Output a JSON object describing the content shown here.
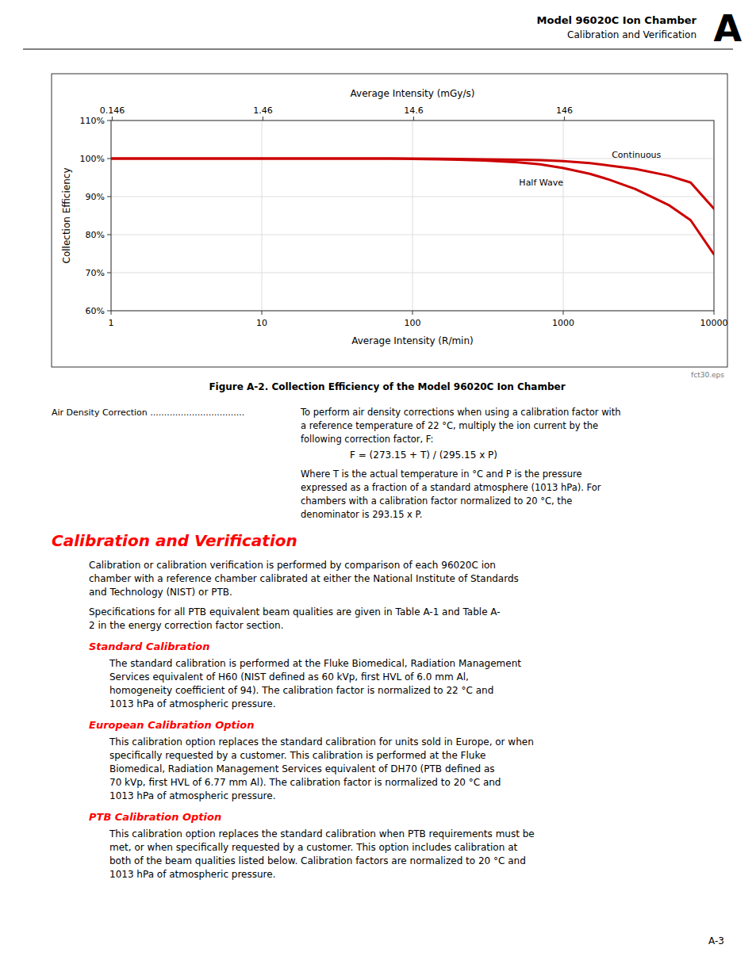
{
  "chart_data": {
    "type": "line",
    "title": "Figure A-2. Collection Efficiency of the Model 96020C Ion Chamber",
    "xlabel": "Average Intensity (R/min)",
    "x2label": "Average Intensity (mGy/s)",
    "ylabel": "Collection Efficiency",
    "log": "x",
    "grid": true,
    "xlim": [
      1,
      10000
    ],
    "xticks": [
      1,
      10,
      100,
      1000,
      10000
    ],
    "x2lim": [
      1,
      10000
    ],
    "x2ticks": [
      {
        "value": 1.017,
        "label": "0.146"
      },
      {
        "value": 10.17,
        "label": "1.46"
      },
      {
        "value": 101.7,
        "label": "14.6"
      },
      {
        "value": 1017,
        "label": "146"
      }
    ],
    "ylim": [
      0.6,
      1.1
    ],
    "yticks": [
      {
        "value": 0.6,
        "label": "60%"
      },
      {
        "value": 0.7,
        "label": "70%"
      },
      {
        "value": 0.8,
        "label": "80%"
      },
      {
        "value": 0.9,
        "label": "90%"
      },
      {
        "value": 1.0,
        "label": "100%"
      },
      {
        "value": 1.1,
        "label": "110%"
      }
    ],
    "x": [
      1,
      2,
      3,
      5,
      7,
      10,
      20,
      30,
      50,
      70,
      100,
      150,
      200,
      300,
      500,
      700,
      1000,
      1500,
      2000,
      3000,
      5000,
      7000,
      10000
    ],
    "series": [
      {
        "name": "Continuous",
        "color": "#cc0000",
        "values": [
          1.0,
          1.0,
          1.0,
          1.0,
          1.0,
          1.0,
          1.0,
          1.0,
          1.0,
          1.0,
          1.0,
          0.9995,
          0.999,
          0.998,
          0.997,
          0.996,
          0.993,
          0.988,
          0.982,
          0.973,
          0.955,
          0.937,
          0.868
        ]
      },
      {
        "name": "Half Wave",
        "color": "#cc0000",
        "values": [
          1.0,
          1.0,
          1.0,
          1.0,
          1.0,
          1.0,
          1.0,
          1.0,
          1.0,
          1.0,
          0.999,
          0.998,
          0.997,
          0.995,
          0.99,
          0.985,
          0.975,
          0.96,
          0.945,
          0.92,
          0.878,
          0.838,
          0.748
        ]
      }
    ]
  },
  "page": {
    "header_title": "Model 96020C Ion Chamber",
    "header_subtitle": "Calibration and Verification",
    "letter": "A",
    "page_number": "A-3",
    "watermark": "fct30.eps",
    "air_density_label": "Air Density Correction ..................................",
    "air_density_text1": "To perform air density corrections when using a calibration factor with\na reference temperature of 22 °C, multiply the ion current by the\nfollowing correction factor, F:",
    "formula": "F = (273.15 + T) / (295.15 x P)",
    "air_density_text2": "Where T is the actual temperature in °C and P is the pressure\nexpressed as a fraction of a standard atmosphere (1013 hPa). For\nchambers with a calibration factor normalized to 20 °C, the\ndenominator is 293.15 x P.",
    "section_title": "Calibration and Verification",
    "section_intro1": "Calibration or calibration verification is performed by comparison of each 96020C ion\nchamber with a reference chamber calibrated at either the National Institute of Standards\nand Technology (NIST) or PTB.",
    "section_intro2": "Specifications for all PTB equivalent beam qualities are given in Table A-1 and Table A-\n2 in the energy correction factor section.",
    "subsection1_title": "Standard Calibration",
    "subsection1_text": "The standard calibration is performed at the Fluke Biomedical, Radiation Management\nServices equivalent of H60 (NIST defined as 60 kVp, first HVL of 6.0 mm Al,\nhomogeneity coefficient of 94). The calibration factor is normalized to 22 °C and\n1013 hPa of atmospheric pressure.",
    "subsection2_title": "European Calibration Option",
    "subsection2_text": "This calibration option replaces the standard calibration for units sold in Europe, or when\nspecifically requested by a customer. This calibration is performed at the Fluke\nBiomedical, Radiation Management Services equivalent of DH70 (PTB defined as\n70 kVp, first HVL of 6.77 mm Al). The calibration factor is normalized to 20 °C and\n1013 hPa of atmospheric pressure.",
    "subsection3_title": "PTB Calibration Option",
    "subsection3_text": "This calibration option replaces the standard calibration when PTB requirements must be\nmet, or when specifically requested by a customer. This option includes calibration at\nboth of the beam qualities listed below. Calibration factors are normalized to 20 °C and\n1013 hPa of atmospheric pressure."
  }
}
